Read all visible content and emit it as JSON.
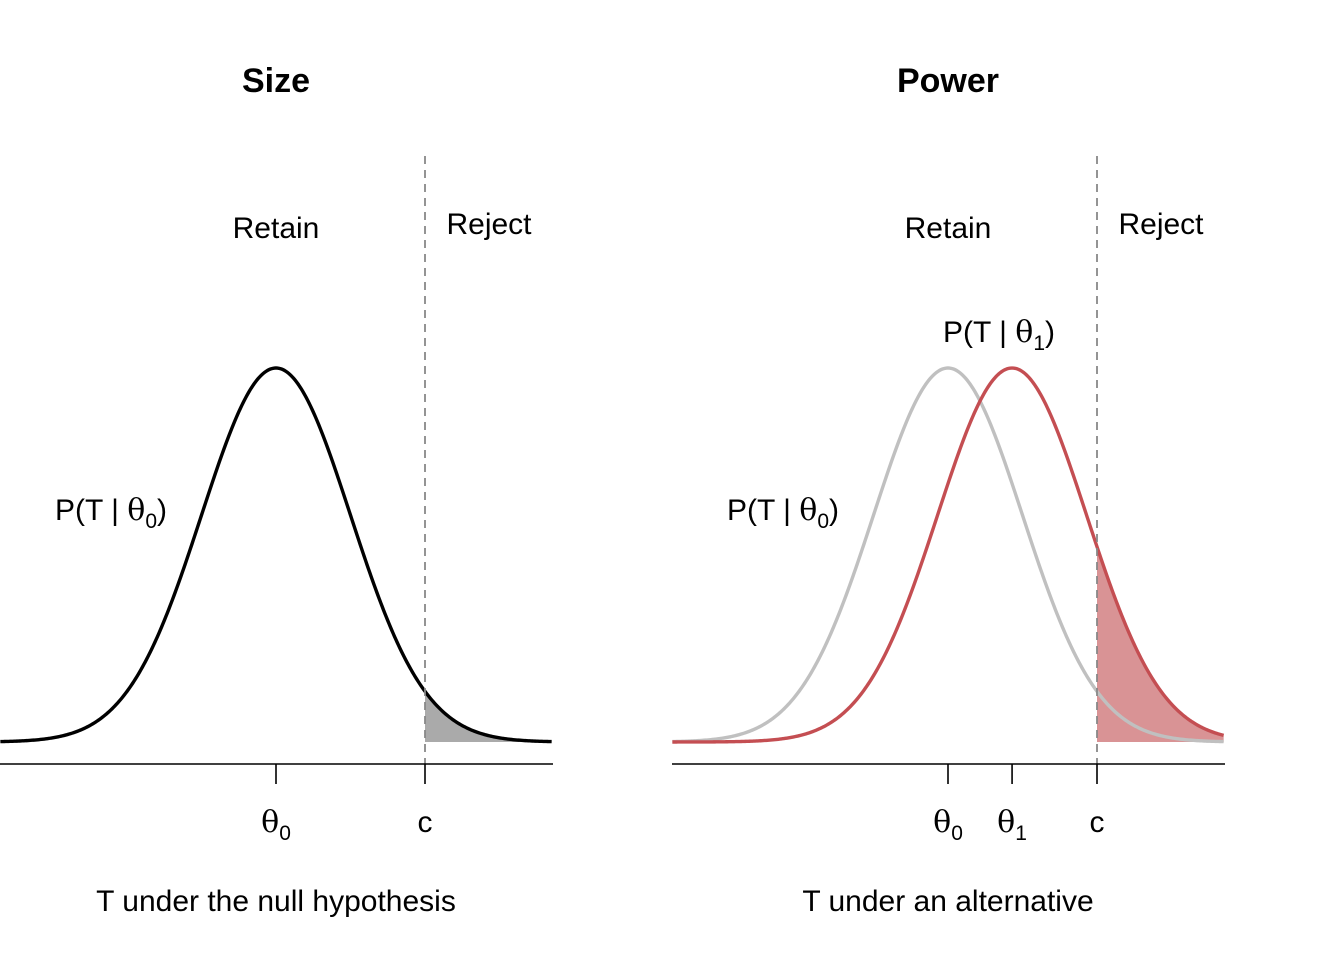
{
  "colors": {
    "null_curve": "#000000",
    "null_curve_faded": "#c0c0c0",
    "alt_curve": "#c44e52",
    "alt_fill": "#d99395",
    "size_fill": "#aaaaaa",
    "threshold_line": "#888888"
  },
  "chart_data": [
    {
      "type": "area",
      "title": "Size",
      "xlabel": "T under the null hypothesis",
      "region_labels": {
        "retain": "Retain",
        "reject": "Reject"
      },
      "x_range": [
        -3.7,
        3.7
      ],
      "ylim": [
        0,
        1
      ],
      "threshold": {
        "x": 2,
        "label": "c"
      },
      "ticks": [
        {
          "x": 0,
          "symbol": "θ",
          "sub": "0"
        },
        {
          "x": 2,
          "symbol": "c",
          "sub": ""
        }
      ],
      "series": [
        {
          "role": "null",
          "mean": 0,
          "sd": 1,
          "label": {
            "prefix": "P",
            "body": "T  |  ",
            "symbol": "θ",
            "sub": "0"
          },
          "shade_from": 2
        }
      ]
    },
    {
      "type": "area",
      "title": "Power",
      "xlabel": "T under an alternative",
      "region_labels": {
        "retain": "Retain",
        "reject": "Reject"
      },
      "x_range": [
        -3.7,
        3.7
      ],
      "ylim": [
        0,
        1
      ],
      "threshold": {
        "x": 2,
        "label": "c"
      },
      "ticks": [
        {
          "x": 0,
          "symbol": "θ",
          "sub": "0"
        },
        {
          "x": 0.86,
          "symbol": "θ",
          "sub": "1"
        },
        {
          "x": 2,
          "symbol": "c",
          "sub": ""
        }
      ],
      "series": [
        {
          "role": "null",
          "mean": 0,
          "sd": 1,
          "label": {
            "prefix": "P",
            "body": "T  |  ",
            "symbol": "θ",
            "sub": "0"
          }
        },
        {
          "role": "alternative",
          "mean": 0.86,
          "sd": 1,
          "label": {
            "prefix": "P",
            "body": "T  |  ",
            "symbol": "θ",
            "sub": "1"
          },
          "shade_from": 2
        }
      ]
    }
  ]
}
